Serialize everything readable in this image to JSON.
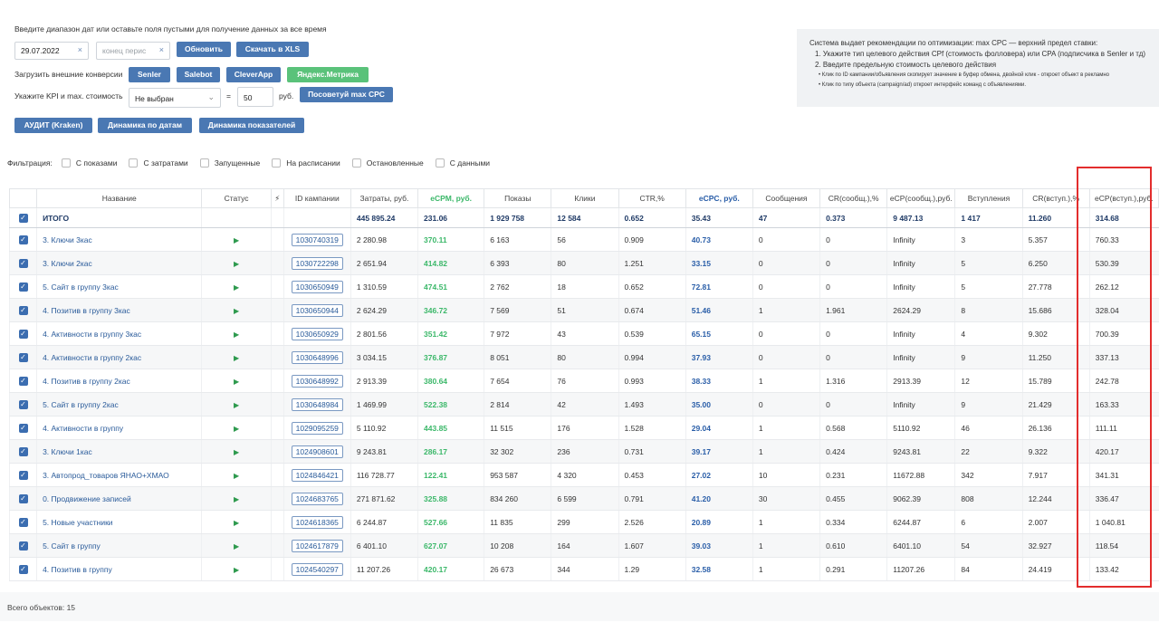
{
  "header": {
    "date_hint": "Введите диапазон дат или оставьте поля пустыми для получение данных за все время",
    "date_from": "29.07.2022",
    "date_to_placeholder": "конец перис",
    "refresh_label": "Обновить",
    "download_label": "Скачать в XLS",
    "conversions_label": "Загрузить внешние конверсии",
    "conv_buttons": [
      "Senler",
      "Salebot",
      "CleverApp",
      "Яндекс.Метрика"
    ],
    "kpi_label": "Укажите KPI и max. стоимость",
    "kpi_select": "Не выбран",
    "equals": "=",
    "max_cost": "50",
    "currency": "руб.",
    "advise_label": "Посоветуй max CPC",
    "audit_label": "АУДИТ (Kraken)",
    "dyn_dates_label": "Динамика по датам",
    "dyn_metrics_label": "Динамика показателей"
  },
  "info": {
    "line1": "Система выдает рекомендации по оптимизации: max CPC — верхний предел ставки:",
    "line2": "1. Укажите тип целевого действия CPf (стоимость фолловера) или CPA (подписчика в Senler и тд)",
    "line3": "2. Введите предельную стоимость целевого действия",
    "line4": "Клик по ID кампании/объявления скопирует значение в буфер обмена, двойной клик - откроет объект в рекламно",
    "line5": "Клик по типу объекта (campaign/ad) откроет интерфейс команд с объявлениями."
  },
  "filters": {
    "label": "Фильтрация:",
    "items": [
      "С показами",
      "С затратами",
      "Запущенные",
      "На расписании",
      "Остановленные",
      "С данными"
    ]
  },
  "table": {
    "headers": [
      "Название",
      "Статус",
      "ID кампании",
      "Затраты, руб.",
      "eCPM, руб.",
      "Показы",
      "Клики",
      "CTR,%",
      "eCPC, руб.",
      "Сообщения",
      "CR(сообщ.),%",
      "eCP(сообщ.),руб.",
      "Вступления",
      "CR(вступ.),%",
      "eCP(вступ.),руб."
    ],
    "total": {
      "name": "ИТОГО",
      "cost": "445 895.24",
      "ecpm": "231.06",
      "shows": "1 929 758",
      "clicks": "12 584",
      "ctr": "0.652",
      "ecpc": "35.43",
      "msgs": "47",
      "cr_msg": "0.373",
      "ecp_msg": "9 487.13",
      "joins": "1 417",
      "cr_join": "11.260",
      "ecp_join": "314.68"
    },
    "rows": [
      {
        "name": "3. Ключи 3кас",
        "id": "1030740319",
        "cost": "2 280.98",
        "ecpm": "370.11",
        "shows": "6 163",
        "clicks": "56",
        "ctr": "0.909",
        "ecpc": "40.73",
        "msgs": "0",
        "cr_msg": "0",
        "ecp_msg": "Infinity",
        "joins": "3",
        "cr_join": "5.357",
        "ecp_join": "760.33"
      },
      {
        "name": "3. Ключи 2кас",
        "id": "1030722298",
        "cost": "2 651.94",
        "ecpm": "414.82",
        "shows": "6 393",
        "clicks": "80",
        "ctr": "1.251",
        "ecpc": "33.15",
        "msgs": "0",
        "cr_msg": "0",
        "ecp_msg": "Infinity",
        "joins": "5",
        "cr_join": "6.250",
        "ecp_join": "530.39"
      },
      {
        "name": "5. Сайт в группу 3кас",
        "id": "1030650949",
        "cost": "1 310.59",
        "ecpm": "474.51",
        "shows": "2 762",
        "clicks": "18",
        "ctr": "0.652",
        "ecpc": "72.81",
        "msgs": "0",
        "cr_msg": "0",
        "ecp_msg": "Infinity",
        "joins": "5",
        "cr_join": "27.778",
        "ecp_join": "262.12"
      },
      {
        "name": "4. Позитив в группу 3кас",
        "id": "1030650944",
        "cost": "2 624.29",
        "ecpm": "346.72",
        "shows": "7 569",
        "clicks": "51",
        "ctr": "0.674",
        "ecpc": "51.46",
        "msgs": "1",
        "cr_msg": "1.961",
        "ecp_msg": "2624.29",
        "joins": "8",
        "cr_join": "15.686",
        "ecp_join": "328.04"
      },
      {
        "name": "4. Активности в группу 3кас",
        "id": "1030650929",
        "cost": "2 801.56",
        "ecpm": "351.42",
        "shows": "7 972",
        "clicks": "43",
        "ctr": "0.539",
        "ecpc": "65.15",
        "msgs": "0",
        "cr_msg": "0",
        "ecp_msg": "Infinity",
        "joins": "4",
        "cr_join": "9.302",
        "ecp_join": "700.39"
      },
      {
        "name": "4. Активности в группу 2кас",
        "id": "1030648996",
        "cost": "3 034.15",
        "ecpm": "376.87",
        "shows": "8 051",
        "clicks": "80",
        "ctr": "0.994",
        "ecpc": "37.93",
        "msgs": "0",
        "cr_msg": "0",
        "ecp_msg": "Infinity",
        "joins": "9",
        "cr_join": "11.250",
        "ecp_join": "337.13"
      },
      {
        "name": "4. Позитив в группу 2кас",
        "id": "1030648992",
        "cost": "2 913.39",
        "ecpm": "380.64",
        "shows": "7 654",
        "clicks": "76",
        "ctr": "0.993",
        "ecpc": "38.33",
        "msgs": "1",
        "cr_msg": "1.316",
        "ecp_msg": "2913.39",
        "joins": "12",
        "cr_join": "15.789",
        "ecp_join": "242.78"
      },
      {
        "name": "5. Сайт в группу 2кас",
        "id": "1030648984",
        "cost": "1 469.99",
        "ecpm": "522.38",
        "shows": "2 814",
        "clicks": "42",
        "ctr": "1.493",
        "ecpc": "35.00",
        "msgs": "0",
        "cr_msg": "0",
        "ecp_msg": "Infinity",
        "joins": "9",
        "cr_join": "21.429",
        "ecp_join": "163.33"
      },
      {
        "name": "4. Активности в группу",
        "id": "1029095259",
        "cost": "5 110.92",
        "ecpm": "443.85",
        "shows": "11 515",
        "clicks": "176",
        "ctr": "1.528",
        "ecpc": "29.04",
        "msgs": "1",
        "cr_msg": "0.568",
        "ecp_msg": "5110.92",
        "joins": "46",
        "cr_join": "26.136",
        "ecp_join": "111.11"
      },
      {
        "name": "3. Ключи 1кас",
        "id": "1024908601",
        "cost": "9 243.81",
        "ecpm": "286.17",
        "shows": "32 302",
        "clicks": "236",
        "ctr": "0.731",
        "ecpc": "39.17",
        "msgs": "1",
        "cr_msg": "0.424",
        "ecp_msg": "9243.81",
        "joins": "22",
        "cr_join": "9.322",
        "ecp_join": "420.17"
      },
      {
        "name": "3. Автопрод_товаров ЯНАО+ХМАО",
        "id": "1024846421",
        "cost": "116 728.77",
        "ecpm": "122.41",
        "shows": "953 587",
        "clicks": "4 320",
        "ctr": "0.453",
        "ecpc": "27.02",
        "msgs": "10",
        "cr_msg": "0.231",
        "ecp_msg": "11672.88",
        "joins": "342",
        "cr_join": "7.917",
        "ecp_join": "341.31"
      },
      {
        "name": "0. Продвижение записей",
        "id": "1024683765",
        "cost": "271 871.62",
        "ecpm": "325.88",
        "shows": "834 260",
        "clicks": "6 599",
        "ctr": "0.791",
        "ecpc": "41.20",
        "msgs": "30",
        "cr_msg": "0.455",
        "ecp_msg": "9062.39",
        "joins": "808",
        "cr_join": "12.244",
        "ecp_join": "336.47"
      },
      {
        "name": "5. Новые участники",
        "id": "1024618365",
        "cost": "6 244.87",
        "ecpm": "527.66",
        "shows": "11 835",
        "clicks": "299",
        "ctr": "2.526",
        "ecpc": "20.89",
        "msgs": "1",
        "cr_msg": "0.334",
        "ecp_msg": "6244.87",
        "joins": "6",
        "cr_join": "2.007",
        "ecp_join": "1 040.81"
      },
      {
        "name": "5. Сайт в группу",
        "id": "1024617879",
        "cost": "6 401.10",
        "ecpm": "627.07",
        "shows": "10 208",
        "clicks": "164",
        "ctr": "1.607",
        "ecpc": "39.03",
        "msgs": "1",
        "cr_msg": "0.610",
        "ecp_msg": "6401.10",
        "joins": "54",
        "cr_join": "32.927",
        "ecp_join": "118.54"
      },
      {
        "name": "4. Позитив в группу",
        "id": "1024540297",
        "cost": "11 207.26",
        "ecpm": "420.17",
        "shows": "26 673",
        "clicks": "344",
        "ctr": "1.29",
        "ecpc": "32.58",
        "msgs": "1",
        "cr_msg": "0.291",
        "ecp_msg": "11207.26",
        "joins": "84",
        "cr_join": "24.419",
        "ecp_join": "133.42"
      }
    ]
  },
  "footer": {
    "total_objects": "Всего объектов: 15"
  },
  "colors": {
    "accent_blue": "#4a78b3",
    "green": "#5ac27a",
    "highlight": "#e32d2d"
  }
}
